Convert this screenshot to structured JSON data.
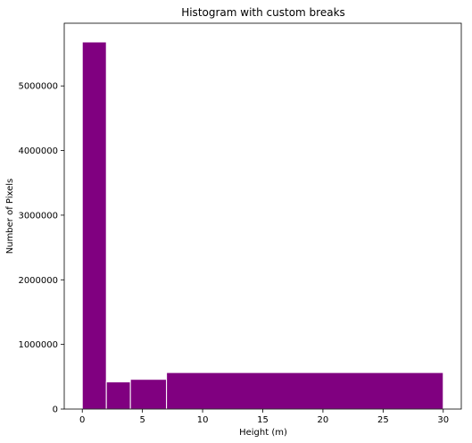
{
  "chart_data": {
    "type": "bar",
    "title": "Histogram with custom breaks",
    "xlabel": "Height (m)",
    "ylabel": "Number of Pixels",
    "bins": [
      {
        "start": 0,
        "end": 2,
        "value": 5680000
      },
      {
        "start": 2,
        "end": 4,
        "value": 420000
      },
      {
        "start": 4,
        "end": 7,
        "value": 460000
      },
      {
        "start": 7,
        "end": 30,
        "value": 565000
      }
    ],
    "xlim": [
      -1.5,
      31.5
    ],
    "ylim": [
      0,
      5970000
    ],
    "xticks": [
      0,
      5,
      10,
      15,
      20,
      25,
      30
    ],
    "xtick_labels": [
      "0",
      "5",
      "10",
      "15",
      "20",
      "25",
      "30"
    ],
    "yticks": [
      0,
      1000000,
      2000000,
      3000000,
      4000000,
      5000000
    ],
    "ytick_labels": [
      "0",
      "1000000",
      "2000000",
      "3000000",
      "4000000",
      "5000000"
    ],
    "bar_color": "#800080",
    "edge_color": "#ffffff",
    "grid": false,
    "legend": "none"
  }
}
